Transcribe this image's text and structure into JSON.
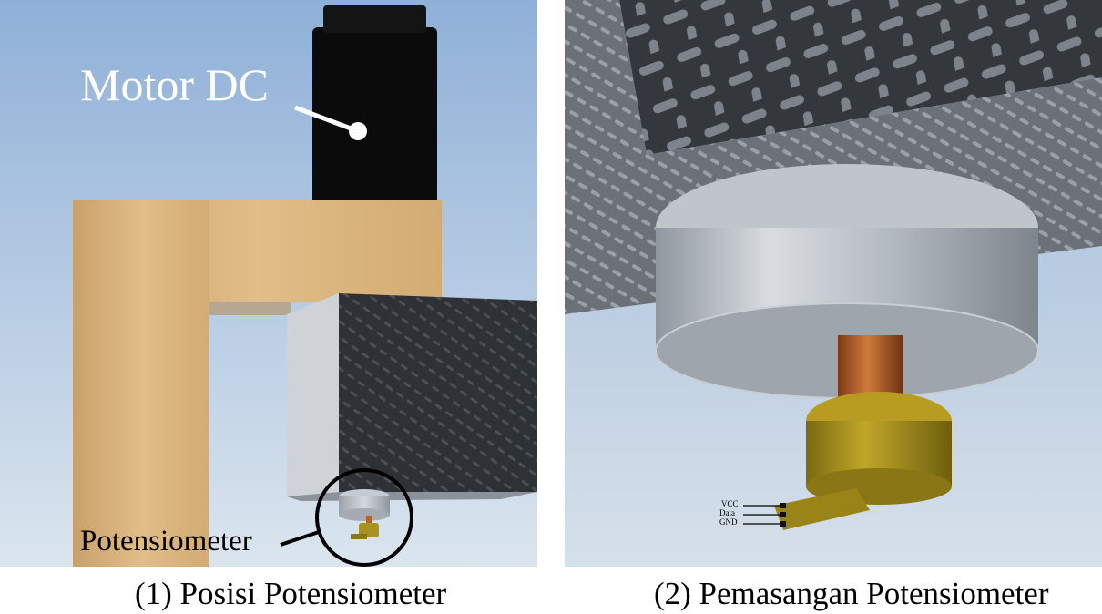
{
  "panels": [
    {
      "caption": "(1) Posisi Potensiometer",
      "labels": {
        "motor": "Motor DC",
        "potentiometer": "Potensiometer"
      }
    },
    {
      "caption": "(2) Pemasangan Potensiometer",
      "pins": {
        "vcc": "VCC",
        "data": "Data",
        "gnd": "GND"
      }
    }
  ],
  "colors": {
    "sky": "#a9c3df",
    "wood": "#d8b27c",
    "motor": "#0a0a0a",
    "plate": "#3a3d42",
    "metal": "#b8bec6",
    "copper": "#b8622a",
    "potentiometer": "#a89020"
  }
}
